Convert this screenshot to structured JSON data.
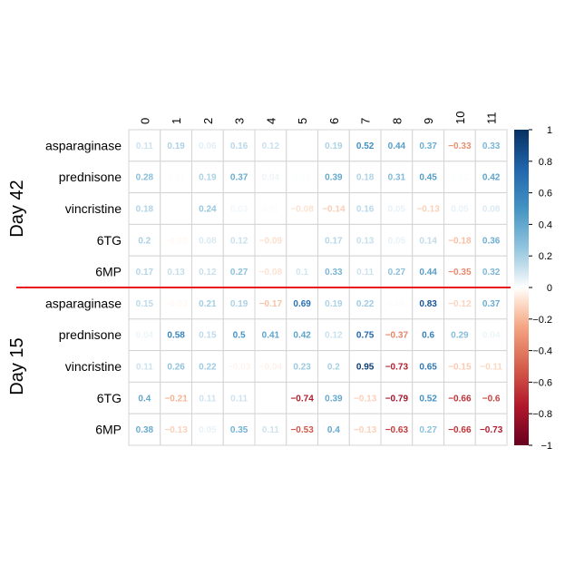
{
  "chart_data": {
    "type": "heatmap",
    "columns": [
      "0",
      "1",
      "2",
      "3",
      "4",
      "5",
      "6",
      "7",
      "8",
      "9",
      "10",
      "11"
    ],
    "groups": [
      "Day 42",
      "Day 15"
    ],
    "rows": [
      {
        "group": "Day 42",
        "label": "asparaginase",
        "values": [
          0.11,
          0.19,
          0.06,
          0.16,
          0.12,
          null,
          0.19,
          0.52,
          0.44,
          0.37,
          -0.33,
          0.33
        ]
      },
      {
        "group": "Day 42",
        "label": "prednisone",
        "values": [
          0.28,
          0.01,
          0.19,
          0.37,
          0.04,
          0.01,
          0.39,
          0.18,
          0.31,
          0.45,
          0.01,
          0.42
        ]
      },
      {
        "group": "Day 42",
        "label": "vincristine",
        "values": [
          0.18,
          null,
          0.24,
          0.03,
          0.01,
          -0.08,
          -0.14,
          0.16,
          0.05,
          -0.13,
          0.05,
          0.08
        ]
      },
      {
        "group": "Day 42",
        "label": "6TG",
        "values": [
          0.2,
          -0.02,
          0.08,
          0.12,
          -0.09,
          null,
          0.17,
          0.13,
          0.05,
          0.14,
          -0.18,
          0.36
        ]
      },
      {
        "group": "Day 42",
        "label": "6MP",
        "values": [
          0.17,
          0.13,
          0.12,
          0.27,
          -0.08,
          0.1,
          0.33,
          0.11,
          0.27,
          0.44,
          -0.35,
          0.32
        ]
      },
      {
        "group": "Day 15",
        "label": "asparaginase",
        "values": [
          0.15,
          -0.02,
          0.21,
          0.19,
          -0.17,
          0.69,
          0.19,
          0.22,
          0.01,
          0.83,
          -0.12,
          0.37
        ]
      },
      {
        "group": "Day 15",
        "label": "prednisone",
        "values": [
          0.04,
          0.58,
          0.15,
          0.5,
          0.41,
          0.42,
          0.12,
          0.75,
          -0.37,
          0.6,
          0.29,
          0.04
        ]
      },
      {
        "group": "Day 15",
        "label": "vincristine",
        "values": [
          0.11,
          0.26,
          0.22,
          -0.03,
          -0.04,
          0.23,
          0.2,
          0.95,
          -0.73,
          0.65,
          -0.15,
          -0.11
        ]
      },
      {
        "group": "Day 15",
        "label": "6TG",
        "values": [
          0.4,
          -0.21,
          0.11,
          0.11,
          null,
          -0.74,
          0.39,
          -0.13,
          -0.79,
          0.52,
          -0.66,
          -0.6
        ]
      },
      {
        "group": "Day 15",
        "label": "6MP",
        "values": [
          0.38,
          -0.13,
          0.05,
          0.35,
          0.11,
          -0.53,
          0.4,
          -0.13,
          -0.63,
          0.27,
          -0.66,
          -0.73
        ]
      }
    ],
    "colorbar": {
      "range": [
        -1,
        1
      ],
      "ticks": [
        "1",
        "0.8",
        "0.6",
        "0.4",
        "0.2",
        "0",
        "−0.2",
        "−0.4",
        "−0.6",
        "−0.8",
        "−1"
      ],
      "colors": {
        "negative": "#67001f",
        "mid": "#ffffff",
        "positive": "#053061"
      }
    },
    "divider_color": "#e8151b",
    "grid": true
  }
}
